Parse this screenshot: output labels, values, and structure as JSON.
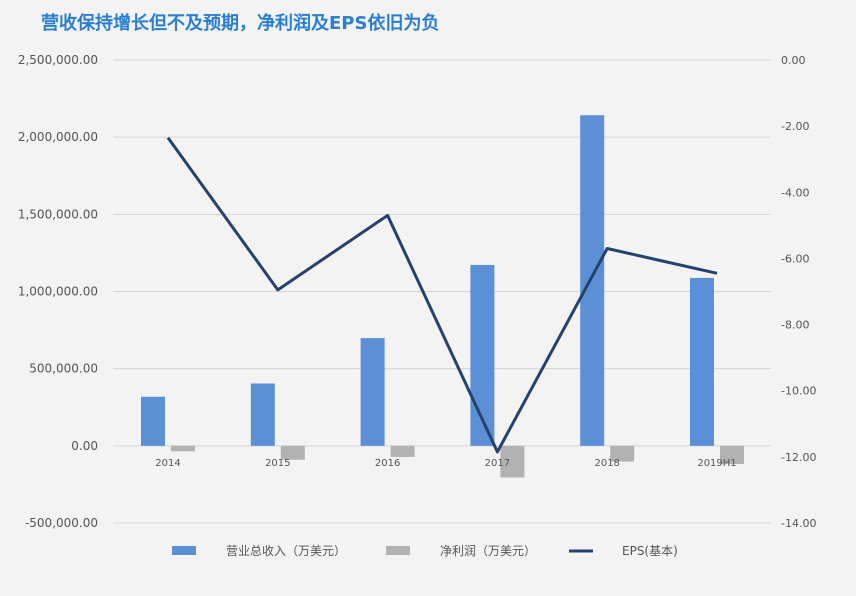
{
  "title": "营收保持增长但不及预期，净利润及EPS依旧为负",
  "colors": {
    "revenue": "#5b8fd6",
    "net_profit": "#b2b2b2",
    "eps": "#23436f",
    "grid": "#d4d4d4",
    "title": "#2a7fd0",
    "background": "#f3f3f3"
  },
  "chart_data": {
    "type": "bar",
    "categories": [
      "2014",
      "2015",
      "2016",
      "2017",
      "2018",
      "2019H1"
    ],
    "series": [
      {
        "name": "营业总收入（万美元）",
        "type": "bar",
        "axis": "left",
        "values": [
          318000,
          404000,
          698000,
          1172000,
          2142000,
          1088000
        ]
      },
      {
        "name": "净利润（万美元）",
        "type": "bar",
        "axis": "left",
        "values": [
          -35000,
          -90000,
          -72000,
          -205000,
          -102000,
          -118000
        ]
      },
      {
        "name": "EPS(基本)",
        "type": "line",
        "axis": "right",
        "values": [
          -2.35,
          -6.95,
          -4.7,
          -11.85,
          -5.7,
          -6.45
        ]
      }
    ],
    "y_left": {
      "ylim": [
        -500000,
        2500000
      ],
      "ticks": [
        -500000,
        0,
        500000,
        1000000,
        1500000,
        2000000,
        2500000
      ],
      "tick_labels": [
        "-500,000.00",
        "0.00",
        "500,000.00",
        "1,000,000.00",
        "1,500,000.00",
        "2,000,000.00",
        "2,500,000.00"
      ]
    },
    "y_right": {
      "ylim": [
        -14,
        0
      ],
      "ticks": [
        0,
        -2,
        -4,
        -6,
        -8,
        -10,
        -12,
        -14
      ],
      "tick_labels": [
        "0.00",
        "-2.00",
        "-4.00",
        "-6.00",
        "-8.00",
        "-10.00",
        "-12.00",
        "-14.00"
      ]
    },
    "grid": true,
    "legend_position": "bottom"
  }
}
